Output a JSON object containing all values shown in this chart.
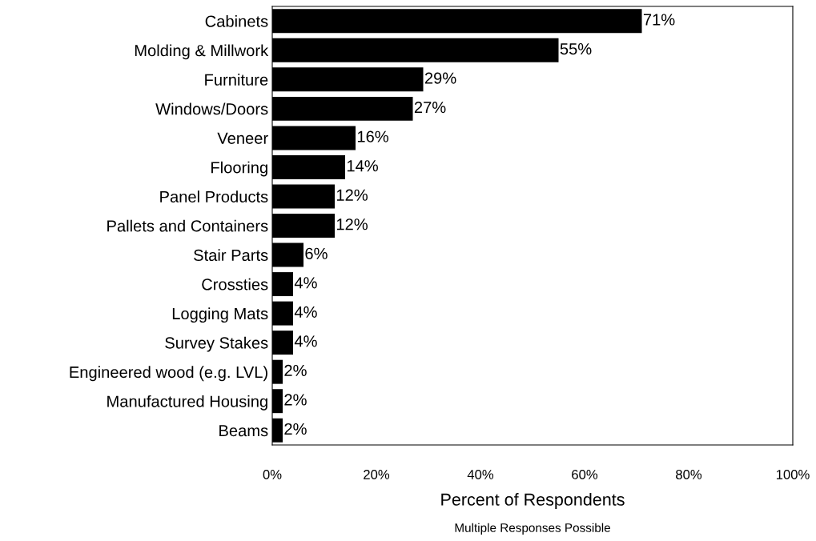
{
  "chart_data": {
    "type": "bar",
    "orientation": "horizontal",
    "categories": [
      "Cabinets",
      "Molding & Millwork",
      "Furniture",
      "Windows/Doors",
      "Veneer",
      "Flooring",
      "Panel Products",
      "Pallets and Containers",
      "Stair Parts",
      "Crossties",
      "Logging Mats",
      "Survey Stakes",
      "Engineered wood (e.g. LVL)",
      "Manufactured Housing",
      "Beams"
    ],
    "values": [
      71,
      55,
      29,
      27,
      16,
      14,
      12,
      12,
      6,
      4,
      4,
      4,
      2,
      2,
      2
    ],
    "value_labels": [
      "71%",
      "55%",
      "29%",
      "27%",
      "16%",
      "14%",
      "12%",
      "12%",
      "6%",
      "4%",
      "4%",
      "4%",
      "2%",
      "2%",
      "2%"
    ],
    "color": "#000000",
    "xlim": [
      0,
      100
    ],
    "xticks": [
      {
        "value": 0,
        "label": "0%"
      },
      {
        "value": 20,
        "label": "20%"
      },
      {
        "value": 40,
        "label": "40%"
      },
      {
        "value": 60,
        "label": "60%"
      },
      {
        "value": 80,
        "label": "80%"
      },
      {
        "value": 100,
        "label": "100%"
      }
    ],
    "xlabel": "Percent of Respondents",
    "annotations": [
      "Multiple Responses Possible"
    ],
    "grid": false
  }
}
